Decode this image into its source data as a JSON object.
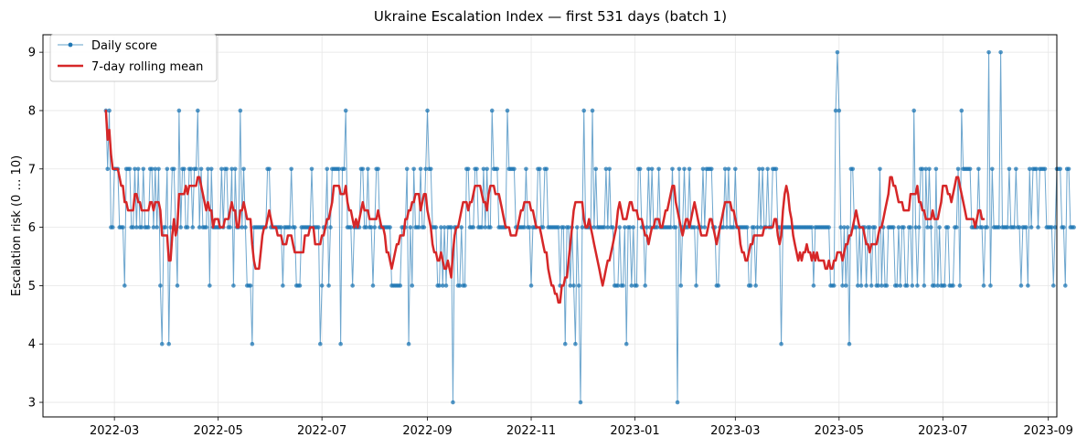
{
  "chart_data": {
    "type": "line",
    "title": "Ukraine Escalation Index — first 531 days (batch 1)",
    "xlabel": "",
    "ylabel": "Escalation risk  (0 … 10)",
    "xlim": [
      "2022-01-18",
      "2023-09-06"
    ],
    "ylim": [
      2.75,
      9.3
    ],
    "grid": true,
    "legend_position": "top-left",
    "xticks": [
      {
        "date": "2022-03-01",
        "label": "2022-03"
      },
      {
        "date": "2022-05-01",
        "label": "2022-05"
      },
      {
        "date": "2022-07-01",
        "label": "2022-07"
      },
      {
        "date": "2022-09-01",
        "label": "2022-09"
      },
      {
        "date": "2022-11-01",
        "label": "2022-11"
      },
      {
        "date": "2023-01-01",
        "label": "2023-01"
      },
      {
        "date": "2023-03-01",
        "label": "2023-03"
      },
      {
        "date": "2023-05-01",
        "label": "2023-05"
      },
      {
        "date": "2023-07-01",
        "label": "2023-07"
      },
      {
        "date": "2023-09-01",
        "label": "2023-09"
      }
    ],
    "yticks": [
      3,
      4,
      5,
      6,
      7,
      8,
      9
    ],
    "start_date": "2022-02-24",
    "series": [
      {
        "name": "Daily score",
        "color": "#1f77b4",
        "values": [
          8,
          7,
          8,
          6,
          6,
          7,
          7,
          7,
          6,
          6,
          6,
          5,
          7,
          7,
          7,
          6,
          6,
          7,
          6,
          7,
          6,
          6,
          7,
          6,
          6,
          6,
          7,
          7,
          6,
          7,
          6,
          7,
          5,
          4,
          6,
          6,
          7,
          4,
          6,
          7,
          7,
          6,
          5,
          8,
          6,
          7,
          7,
          6,
          6,
          7,
          7,
          6,
          7,
          7,
          8,
          6,
          7,
          6,
          6,
          6,
          7,
          5,
          7,
          6,
          6,
          6,
          6,
          6,
          7,
          6,
          7,
          7,
          6,
          6,
          7,
          5,
          7,
          6,
          6,
          8,
          6,
          7,
          6,
          5,
          5,
          5,
          4,
          6,
          6,
          6,
          6,
          6,
          6,
          6,
          6,
          7,
          7,
          6,
          6,
          6,
          6,
          6,
          6,
          6,
          5,
          6,
          6,
          6,
          6,
          7,
          6,
          6,
          5,
          5,
          5,
          6,
          6,
          6,
          6,
          6,
          6,
          7,
          6,
          6,
          6,
          6,
          4,
          5,
          6,
          6,
          7,
          5,
          6,
          7,
          7,
          7,
          7,
          7,
          4,
          7,
          7,
          8,
          6,
          6,
          6,
          5,
          6,
          6,
          6,
          6,
          7,
          7,
          6,
          6,
          7,
          6,
          6,
          5,
          6,
          7,
          7,
          6,
          6,
          6,
          6,
          6,
          6,
          6,
          5,
          5,
          5,
          5,
          5,
          5,
          6,
          6,
          6,
          7,
          4,
          6,
          5,
          7,
          6,
          6,
          6,
          7,
          6,
          6,
          7,
          8,
          7,
          7,
          6,
          6,
          6,
          5,
          5,
          6,
          5,
          6,
          5,
          6,
          6,
          6,
          3,
          6,
          6,
          5,
          5,
          6,
          5,
          5,
          7,
          7,
          6,
          6,
          6,
          7,
          7,
          6,
          6,
          6,
          7,
          6,
          7,
          6,
          6,
          8,
          7,
          7,
          7,
          6,
          6,
          6,
          6,
          6,
          8,
          7,
          7,
          7,
          7,
          6,
          6,
          6,
          6,
          6,
          6,
          7,
          6,
          6,
          5,
          6,
          6,
          6,
          7,
          7,
          6,
          6,
          7,
          7,
          6,
          6,
          6,
          6,
          6,
          6,
          6,
          5,
          6,
          6,
          4,
          6,
          6,
          5,
          6,
          5,
          4,
          6,
          5,
          3,
          6,
          8,
          6,
          6,
          6,
          6,
          8,
          6,
          7,
          6,
          6,
          6,
          6,
          6,
          7,
          6,
          7,
          6,
          6,
          5,
          5,
          5,
          6,
          5,
          5,
          6,
          4,
          6,
          6,
          5,
          6,
          5,
          5,
          7,
          7,
          6,
          6,
          5,
          6,
          7,
          6,
          7,
          6,
          6,
          6,
          7,
          6,
          6,
          6,
          6,
          6,
          6,
          6,
          7,
          6,
          6,
          3,
          7,
          5,
          6,
          7,
          6,
          6,
          7,
          6,
          6,
          6,
          5,
          6,
          6,
          6,
          7,
          6,
          7,
          7,
          7,
          7,
          6,
          6,
          5,
          5,
          6,
          6,
          6,
          7,
          6,
          7,
          6,
          6,
          6,
          7,
          6,
          6,
          6,
          6,
          6,
          6,
          6,
          5,
          5,
          6,
          6,
          5,
          6,
          7,
          6,
          7,
          6,
          6,
          7,
          6,
          6,
          7,
          7,
          7,
          6,
          6,
          4,
          6,
          6,
          6,
          6,
          6,
          6,
          6,
          6,
          6,
          6,
          6,
          6,
          6,
          6,
          6,
          6,
          6,
          6,
          5,
          6,
          6,
          6,
          6,
          6,
          6,
          6,
          6,
          6,
          5,
          5,
          5,
          8,
          9,
          8,
          6,
          5,
          6,
          5,
          6,
          4,
          7,
          7,
          6,
          6,
          5,
          6,
          5,
          6,
          6,
          5,
          6,
          6,
          5,
          6,
          6,
          5,
          5,
          7,
          5,
          6,
          5,
          5,
          6,
          6,
          6,
          6,
          5,
          5,
          6,
          5,
          6,
          6,
          5,
          5,
          6,
          6,
          5,
          8,
          6,
          5,
          6,
          7,
          7,
          5,
          7,
          6,
          7,
          6,
          5,
          5,
          7,
          5,
          6,
          5,
          5,
          5,
          6,
          6,
          5,
          5,
          5,
          6,
          6,
          7,
          5,
          8,
          7,
          7,
          7,
          7,
          7,
          6,
          6,
          6,
          6,
          7,
          6,
          6,
          5,
          6,
          6,
          9,
          5,
          7,
          6,
          6,
          6,
          6,
          9,
          6,
          6,
          6,
          6,
          7,
          6,
          6,
          6,
          7,
          6,
          6,
          5,
          6,
          6,
          6,
          5,
          7,
          6,
          7,
          7,
          7,
          6,
          7,
          7,
          7,
          7,
          6,
          6,
          6,
          6,
          5,
          6,
          7,
          7,
          7,
          6,
          6,
          5,
          7,
          7,
          6,
          6,
          6
        ]
      },
      {
        "name": "7-day rolling mean",
        "color": "#d62728",
        "values": [
          8.0,
          7.5,
          7.67,
          7.25,
          7.0,
          7.0,
          7.0,
          7.0,
          6.86,
          6.71,
          6.71,
          6.43,
          6.43,
          6.29,
          6.29,
          6.29,
          6.29,
          6.57,
          6.57,
          6.43,
          6.43,
          6.29,
          6.29,
          6.29,
          6.29,
          6.29,
          6.43,
          6.43,
          6.29,
          6.43,
          6.43,
          6.43,
          6.29,
          5.86,
          5.86,
          5.86,
          5.86,
          5.43,
          5.43,
          5.86,
          6.14,
          5.86,
          6.0,
          6.57,
          6.57,
          6.57,
          6.57,
          6.71,
          6.57,
          6.71,
          6.71,
          6.71,
          6.71,
          6.71,
          6.86,
          6.86,
          6.71,
          6.57,
          6.43,
          6.29,
          6.43,
          6.29,
          6.29,
          6.0,
          6.14,
          6.14,
          6.14,
          6.0,
          6.0,
          6.0,
          6.14,
          6.14,
          6.14,
          6.29,
          6.43,
          6.29,
          6.29,
          6.0,
          6.0,
          6.29,
          6.29,
          6.43,
          6.29,
          6.14,
          6.14,
          6.14,
          5.71,
          5.43,
          5.29,
          5.29,
          5.29,
          5.57,
          5.86,
          6.0,
          6.0,
          6.14,
          6.29,
          6.14,
          6.0,
          6.0,
          6.0,
          5.86,
          5.86,
          5.86,
          5.71,
          5.71,
          5.71,
          5.86,
          5.86,
          5.86,
          5.71,
          5.57,
          5.57,
          5.57,
          5.57,
          5.57,
          5.57,
          5.86,
          5.86,
          5.86,
          6.0,
          6.0,
          6.0,
          5.71,
          5.71,
          5.71,
          5.71,
          5.86,
          5.86,
          6.0,
          6.14,
          6.14,
          6.29,
          6.43,
          6.71,
          6.71,
          6.71,
          6.71,
          6.57,
          6.57,
          6.57,
          6.71,
          6.43,
          6.29,
          6.29,
          6.14,
          6.0,
          6.14,
          6.0,
          6.14,
          6.29,
          6.43,
          6.29,
          6.29,
          6.29,
          6.14,
          6.14,
          6.14,
          6.14,
          6.14,
          6.29,
          6.14,
          6.0,
          6.0,
          5.86,
          5.57,
          5.57,
          5.43,
          5.29,
          5.43,
          5.57,
          5.71,
          5.71,
          5.86,
          5.86,
          5.86,
          6.14,
          6.14,
          6.29,
          6.29,
          6.43,
          6.43,
          6.57,
          6.57,
          6.57,
          6.29,
          6.43,
          6.57,
          6.57,
          6.29,
          6.14,
          6.0,
          5.71,
          5.57,
          5.57,
          5.43,
          5.43,
          5.57,
          5.43,
          5.29,
          5.29,
          5.43,
          5.29,
          5.14,
          5.57,
          5.86,
          6.0,
          6.0,
          6.14,
          6.29,
          6.43,
          6.43,
          6.43,
          6.29,
          6.43,
          6.43,
          6.57,
          6.71,
          6.71,
          6.71,
          6.71,
          6.57,
          6.43,
          6.43,
          6.29,
          6.57,
          6.71,
          6.71,
          6.71,
          6.57,
          6.57,
          6.57,
          6.43,
          6.29,
          6.14,
          6.0,
          6.0,
          6.0,
          5.86,
          5.86,
          5.86,
          5.86,
          6.0,
          6.14,
          6.29,
          6.29,
          6.43,
          6.43,
          6.43,
          6.43,
          6.29,
          6.29,
          6.14,
          6.0,
          6.0,
          6.0,
          5.86,
          5.71,
          5.57,
          5.57,
          5.29,
          5.14,
          5.0,
          5.0,
          4.86,
          4.86,
          4.71,
          4.71,
          5.0,
          5.0,
          5.14,
          5.14,
          5.43,
          5.71,
          6.0,
          6.29,
          6.43,
          6.43,
          6.43,
          6.43,
          6.43,
          6.14,
          6.0,
          6.0,
          6.14,
          6.0,
          5.86,
          5.71,
          5.57,
          5.43,
          5.29,
          5.14,
          5.0,
          5.14,
          5.29,
          5.43,
          5.43,
          5.57,
          5.71,
          5.86,
          6.0,
          6.29,
          6.43,
          6.29,
          6.14,
          6.14,
          6.14,
          6.29,
          6.43,
          6.43,
          6.29,
          6.29,
          6.29,
          6.14,
          6.14,
          6.14,
          6.0,
          5.86,
          5.86,
          5.71,
          5.86,
          6.0,
          6.0,
          6.14,
          6.14,
          6.14,
          6.0,
          6.0,
          6.14,
          6.29,
          6.29,
          6.43,
          6.57,
          6.71,
          6.71,
          6.43,
          6.29,
          6.14,
          6.0,
          5.86,
          6.0,
          6.14,
          6.14,
          6.0,
          6.14,
          6.29,
          6.43,
          6.29,
          6.14,
          6.0,
          5.86,
          5.86,
          5.86,
          5.86,
          6.0,
          6.14,
          6.14,
          6.0,
          5.86,
          5.71,
          5.86,
          6.0,
          6.14,
          6.29,
          6.43,
          6.43,
          6.43,
          6.43,
          6.29,
          6.29,
          6.14,
          6.0,
          6.0,
          5.71,
          5.57,
          5.57,
          5.43,
          5.43,
          5.57,
          5.71,
          5.71,
          5.86,
          5.86,
          5.86,
          5.86,
          5.86,
          5.86,
          6.0,
          6.0,
          6.0,
          6.0,
          6.0,
          6.0,
          6.14,
          6.14,
          5.86,
          5.71,
          5.86,
          6.29,
          6.57,
          6.71,
          6.57,
          6.29,
          6.14,
          5.86,
          5.71,
          5.57,
          5.43,
          5.57,
          5.43,
          5.57,
          5.57,
          5.71,
          5.57,
          5.57,
          5.43,
          5.57,
          5.43,
          5.57,
          5.43,
          5.43,
          5.43,
          5.43,
          5.29,
          5.29,
          5.43,
          5.29,
          5.29,
          5.43,
          5.43,
          5.57,
          5.57,
          5.57,
          5.43,
          5.57,
          5.71,
          5.71,
          5.86,
          5.86,
          6.0,
          6.14,
          6.29,
          6.14,
          6.0,
          6.0,
          6.0,
          5.86,
          5.71,
          5.71,
          5.57,
          5.71,
          5.71,
          5.71,
          5.71,
          5.86,
          6.0,
          6.0,
          6.14,
          6.29,
          6.43,
          6.57,
          6.86,
          6.86,
          6.71,
          6.71,
          6.57,
          6.43,
          6.43,
          6.43,
          6.29,
          6.29,
          6.29,
          6.29,
          6.57,
          6.57,
          6.57,
          6.57,
          6.71,
          6.43,
          6.43,
          6.29,
          6.29,
          6.14,
          6.14,
          6.14,
          6.14,
          6.29,
          6.14,
          6.14,
          6.14,
          6.29,
          6.43,
          6.71,
          6.71,
          6.71,
          6.57,
          6.57,
          6.43,
          6.57,
          6.71,
          6.86,
          6.86,
          6.71,
          6.57,
          6.43,
          6.29,
          6.14,
          6.14,
          6.14,
          6.14,
          6.14,
          6.0,
          6.14,
          6.29,
          6.29,
          6.14,
          6.14
        ]
      }
    ]
  }
}
